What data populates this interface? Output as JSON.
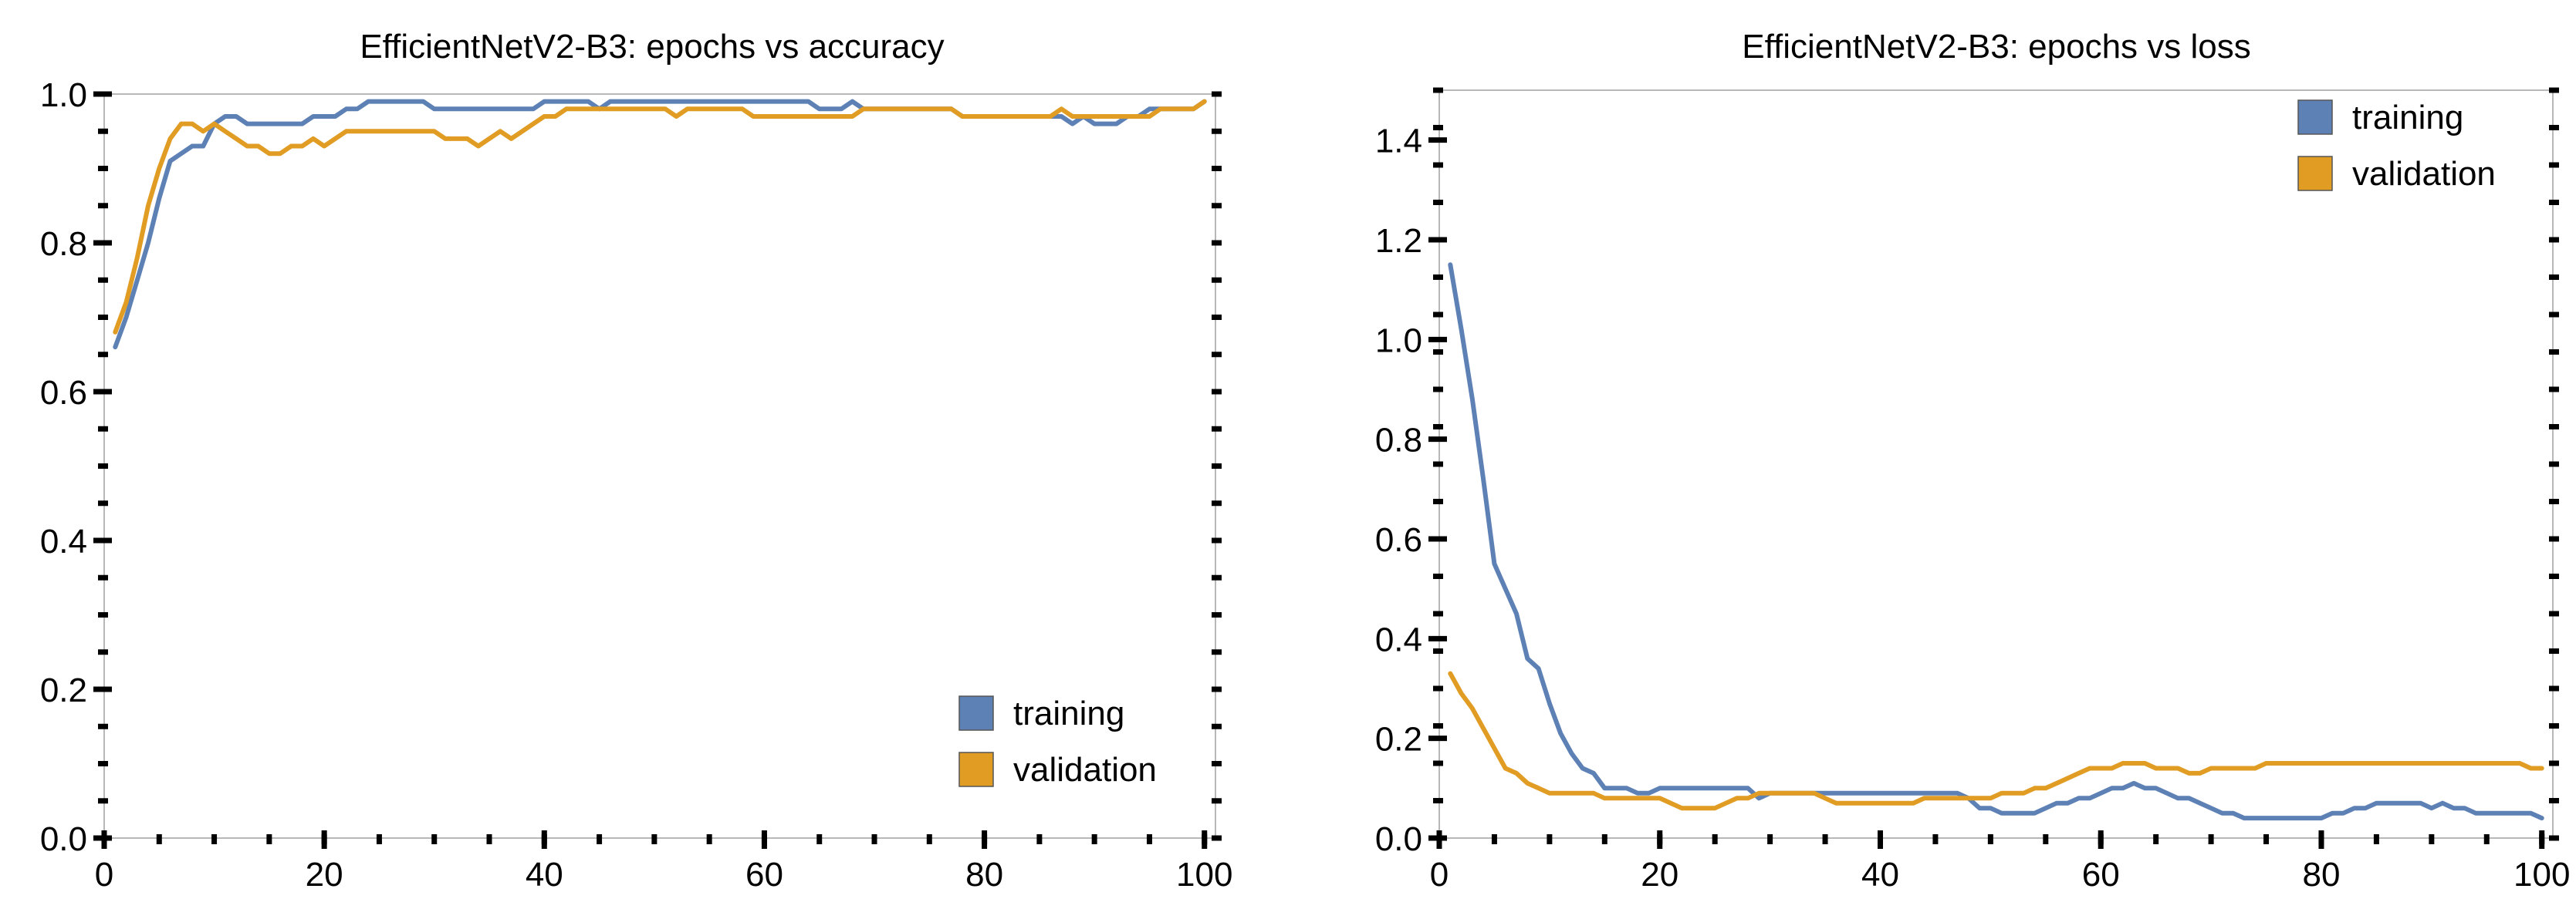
{
  "colors": {
    "training": "#5e81b5",
    "validation": "#e19c24"
  },
  "chart_data": [
    {
      "type": "line",
      "title": "EfficientNetV2-B3: epochs vs accuracy",
      "xlabel": "",
      "ylabel": "",
      "xlim": [
        0,
        101
      ],
      "ylim": [
        0,
        1.0
      ],
      "xticks": [
        0,
        20,
        40,
        60,
        80,
        100
      ],
      "yticks": [
        0.0,
        0.2,
        0.4,
        0.6,
        0.8,
        1.0
      ],
      "ytick_labels": [
        "0.0",
        "0.2",
        "0.4",
        "0.6",
        "0.8",
        "1.0"
      ],
      "legend_position": "bottom-right",
      "series": [
        {
          "name": "training",
          "color_key": "training",
          "x": [
            1,
            2,
            3,
            4,
            5,
            6,
            7,
            8,
            9,
            10,
            11,
            12,
            13,
            14,
            15,
            16,
            17,
            18,
            19,
            20,
            21,
            22,
            23,
            24,
            25,
            26,
            27,
            28,
            29,
            30,
            31,
            32,
            33,
            34,
            35,
            36,
            37,
            38,
            39,
            40,
            41,
            42,
            43,
            44,
            45,
            46,
            47,
            48,
            49,
            50,
            51,
            52,
            53,
            54,
            55,
            56,
            57,
            58,
            59,
            60,
            61,
            62,
            63,
            64,
            65,
            66,
            67,
            68,
            69,
            70,
            71,
            72,
            73,
            74,
            75,
            76,
            77,
            78,
            79,
            80,
            81,
            82,
            83,
            84,
            85,
            86,
            87,
            88,
            89,
            90,
            91,
            92,
            93,
            94,
            95,
            96,
            97,
            98,
            99,
            100
          ],
          "values": [
            0.66,
            0.7,
            0.75,
            0.8,
            0.86,
            0.91,
            0.92,
            0.93,
            0.93,
            0.96,
            0.97,
            0.97,
            0.96,
            0.96,
            0.96,
            0.96,
            0.96,
            0.96,
            0.97,
            0.97,
            0.97,
            0.98,
            0.98,
            0.99,
            0.99,
            0.99,
            0.99,
            0.99,
            0.99,
            0.98,
            0.98,
            0.98,
            0.98,
            0.98,
            0.98,
            0.98,
            0.98,
            0.98,
            0.98,
            0.99,
            0.99,
            0.99,
            0.99,
            0.99,
            0.98,
            0.99,
            0.99,
            0.99,
            0.99,
            0.99,
            0.99,
            0.99,
            0.99,
            0.99,
            0.99,
            0.99,
            0.99,
            0.99,
            0.99,
            0.99,
            0.99,
            0.99,
            0.99,
            0.99,
            0.98,
            0.98,
            0.98,
            0.99,
            0.98,
            0.98,
            0.98,
            0.98,
            0.98,
            0.98,
            0.98,
            0.98,
            0.98,
            0.97,
            0.97,
            0.97,
            0.97,
            0.97,
            0.97,
            0.97,
            0.97,
            0.97,
            0.97,
            0.96,
            0.97,
            0.96,
            0.96,
            0.96,
            0.97,
            0.97,
            0.98,
            0.98,
            0.98,
            0.98,
            0.98,
            0.99
          ]
        },
        {
          "name": "validation",
          "color_key": "validation",
          "x": [
            1,
            2,
            3,
            4,
            5,
            6,
            7,
            8,
            9,
            10,
            11,
            12,
            13,
            14,
            15,
            16,
            17,
            18,
            19,
            20,
            21,
            22,
            23,
            24,
            25,
            26,
            27,
            28,
            29,
            30,
            31,
            32,
            33,
            34,
            35,
            36,
            37,
            38,
            39,
            40,
            41,
            42,
            43,
            44,
            45,
            46,
            47,
            48,
            49,
            50,
            51,
            52,
            53,
            54,
            55,
            56,
            57,
            58,
            59,
            60,
            61,
            62,
            63,
            64,
            65,
            66,
            67,
            68,
            69,
            70,
            71,
            72,
            73,
            74,
            75,
            76,
            77,
            78,
            79,
            80,
            81,
            82,
            83,
            84,
            85,
            86,
            87,
            88,
            89,
            90,
            91,
            92,
            93,
            94,
            95,
            96,
            97,
            98,
            99,
            100
          ],
          "values": [
            0.68,
            0.72,
            0.78,
            0.85,
            0.9,
            0.94,
            0.96,
            0.96,
            0.95,
            0.96,
            0.95,
            0.94,
            0.93,
            0.93,
            0.92,
            0.92,
            0.93,
            0.93,
            0.94,
            0.93,
            0.94,
            0.95,
            0.95,
            0.95,
            0.95,
            0.95,
            0.95,
            0.95,
            0.95,
            0.95,
            0.94,
            0.94,
            0.94,
            0.93,
            0.94,
            0.95,
            0.94,
            0.95,
            0.96,
            0.97,
            0.97,
            0.98,
            0.98,
            0.98,
            0.98,
            0.98,
            0.98,
            0.98,
            0.98,
            0.98,
            0.98,
            0.97,
            0.98,
            0.98,
            0.98,
            0.98,
            0.98,
            0.98,
            0.97,
            0.97,
            0.97,
            0.97,
            0.97,
            0.97,
            0.97,
            0.97,
            0.97,
            0.97,
            0.98,
            0.98,
            0.98,
            0.98,
            0.98,
            0.98,
            0.98,
            0.98,
            0.98,
            0.97,
            0.97,
            0.97,
            0.97,
            0.97,
            0.97,
            0.97,
            0.97,
            0.97,
            0.98,
            0.97,
            0.97,
            0.97,
            0.97,
            0.97,
            0.97,
            0.97,
            0.97,
            0.98,
            0.98,
            0.98,
            0.98,
            0.99
          ]
        }
      ]
    },
    {
      "type": "line",
      "title": "EfficientNetV2-B3: epochs vs loss",
      "xlabel": "",
      "ylabel": "",
      "xlim": [
        0,
        101
      ],
      "ylim": [
        0,
        1.5
      ],
      "xticks": [
        0,
        20,
        40,
        60,
        80,
        100
      ],
      "yticks": [
        0.0,
        0.2,
        0.4,
        0.6,
        0.8,
        1.0,
        1.2,
        1.4
      ],
      "ytick_labels": [
        "0.0",
        "0.2",
        "0.4",
        "0.6",
        "0.8",
        "1.0",
        "1.2",
        "1.4"
      ],
      "legend_position": "top-right",
      "series": [
        {
          "name": "training",
          "color_key": "training",
          "x": [
            1,
            2,
            3,
            4,
            5,
            6,
            7,
            8,
            9,
            10,
            11,
            12,
            13,
            14,
            15,
            16,
            17,
            18,
            19,
            20,
            21,
            22,
            23,
            24,
            25,
            26,
            27,
            28,
            29,
            30,
            31,
            32,
            33,
            34,
            35,
            36,
            37,
            38,
            39,
            40,
            41,
            42,
            43,
            44,
            45,
            46,
            47,
            48,
            49,
            50,
            51,
            52,
            53,
            54,
            55,
            56,
            57,
            58,
            59,
            60,
            61,
            62,
            63,
            64,
            65,
            66,
            67,
            68,
            69,
            70,
            71,
            72,
            73,
            74,
            75,
            76,
            77,
            78,
            79,
            80,
            81,
            82,
            83,
            84,
            85,
            86,
            87,
            88,
            89,
            90,
            91,
            92,
            93,
            94,
            95,
            96,
            97,
            98,
            99,
            100
          ],
          "values": [
            1.15,
            1.02,
            0.88,
            0.72,
            0.55,
            0.5,
            0.45,
            0.36,
            0.34,
            0.27,
            0.21,
            0.17,
            0.14,
            0.13,
            0.1,
            0.1,
            0.1,
            0.09,
            0.09,
            0.1,
            0.1,
            0.1,
            0.1,
            0.1,
            0.1,
            0.1,
            0.1,
            0.1,
            0.08,
            0.09,
            0.09,
            0.09,
            0.09,
            0.09,
            0.09,
            0.09,
            0.09,
            0.09,
            0.09,
            0.09,
            0.09,
            0.09,
            0.09,
            0.09,
            0.09,
            0.09,
            0.09,
            0.08,
            0.06,
            0.06,
            0.05,
            0.05,
            0.05,
            0.05,
            0.06,
            0.07,
            0.07,
            0.08,
            0.08,
            0.09,
            0.1,
            0.1,
            0.11,
            0.1,
            0.1,
            0.09,
            0.08,
            0.08,
            0.07,
            0.06,
            0.05,
            0.05,
            0.04,
            0.04,
            0.04,
            0.04,
            0.04,
            0.04,
            0.04,
            0.04,
            0.05,
            0.05,
            0.06,
            0.06,
            0.07,
            0.07,
            0.07,
            0.07,
            0.07,
            0.06,
            0.07,
            0.06,
            0.06,
            0.05,
            0.05,
            0.05,
            0.05,
            0.05,
            0.05,
            0.04
          ]
        },
        {
          "name": "validation",
          "color_key": "validation",
          "x": [
            1,
            2,
            3,
            4,
            5,
            6,
            7,
            8,
            9,
            10,
            11,
            12,
            13,
            14,
            15,
            16,
            17,
            18,
            19,
            20,
            21,
            22,
            23,
            24,
            25,
            26,
            27,
            28,
            29,
            30,
            31,
            32,
            33,
            34,
            35,
            36,
            37,
            38,
            39,
            40,
            41,
            42,
            43,
            44,
            45,
            46,
            47,
            48,
            49,
            50,
            51,
            52,
            53,
            54,
            55,
            56,
            57,
            58,
            59,
            60,
            61,
            62,
            63,
            64,
            65,
            66,
            67,
            68,
            69,
            70,
            71,
            72,
            73,
            74,
            75,
            76,
            77,
            78,
            79,
            80,
            81,
            82,
            83,
            84,
            85,
            86,
            87,
            88,
            89,
            90,
            91,
            92,
            93,
            94,
            95,
            96,
            97,
            98,
            99,
            100
          ],
          "values": [
            0.33,
            0.29,
            0.26,
            0.22,
            0.18,
            0.14,
            0.13,
            0.11,
            0.1,
            0.09,
            0.09,
            0.09,
            0.09,
            0.09,
            0.08,
            0.08,
            0.08,
            0.08,
            0.08,
            0.08,
            0.07,
            0.06,
            0.06,
            0.06,
            0.06,
            0.07,
            0.08,
            0.08,
            0.09,
            0.09,
            0.09,
            0.09,
            0.09,
            0.09,
            0.08,
            0.07,
            0.07,
            0.07,
            0.07,
            0.07,
            0.07,
            0.07,
            0.07,
            0.08,
            0.08,
            0.08,
            0.08,
            0.08,
            0.08,
            0.08,
            0.09,
            0.09,
            0.09,
            0.1,
            0.1,
            0.11,
            0.12,
            0.13,
            0.14,
            0.14,
            0.14,
            0.15,
            0.15,
            0.15,
            0.14,
            0.14,
            0.14,
            0.13,
            0.13,
            0.14,
            0.14,
            0.14,
            0.14,
            0.14,
            0.15,
            0.15,
            0.15,
            0.15,
            0.15,
            0.15,
            0.15,
            0.15,
            0.15,
            0.15,
            0.15,
            0.15,
            0.15,
            0.15,
            0.15,
            0.15,
            0.15,
            0.15,
            0.15,
            0.15,
            0.15,
            0.15,
            0.15,
            0.15,
            0.14,
            0.14
          ]
        }
      ]
    }
  ]
}
